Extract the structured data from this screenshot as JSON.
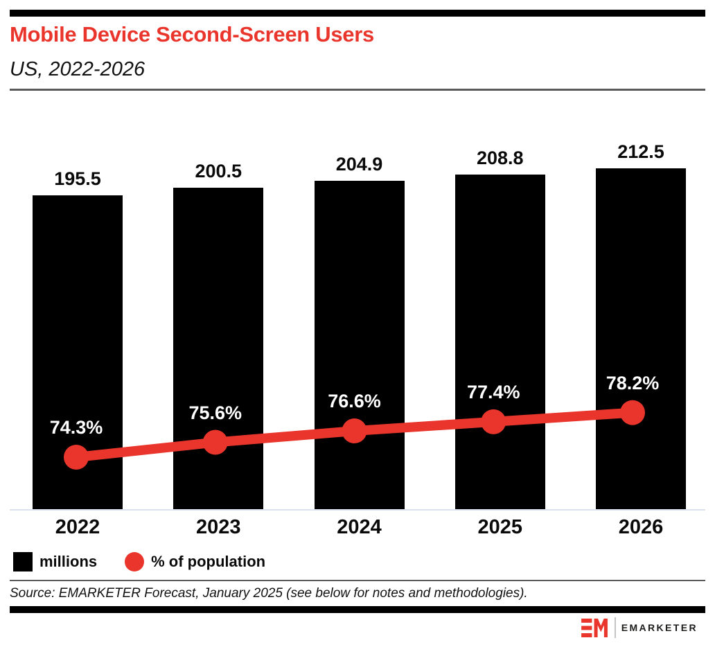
{
  "header": {
    "title": "Mobile Device Second-Screen Users",
    "subtitle": "US, 2022-2026"
  },
  "chart_data": {
    "type": "combo-bar-line",
    "categories": [
      "2022",
      "2023",
      "2024",
      "2025",
      "2026"
    ],
    "series": [
      {
        "name": "millions",
        "type": "bar",
        "color": "#000000",
        "values": [
          195.5,
          200.5,
          204.9,
          208.8,
          212.5
        ],
        "labels": [
          "195.5",
          "200.5",
          "204.9",
          "208.8",
          "212.5"
        ]
      },
      {
        "name": "% of population",
        "type": "line",
        "color": "#e9352b",
        "values": [
          74.3,
          75.6,
          76.6,
          77.4,
          78.2
        ],
        "labels": [
          "74.3%",
          "75.6%",
          "76.6%",
          "77.4%",
          "78.2%"
        ]
      }
    ],
    "title": "Mobile Device Second-Screen Users",
    "subtitle": "US, 2022-2026",
    "xlabel": "",
    "ylabel": "",
    "bar_axis_min": 0,
    "grid": false,
    "value_labels": "above bars and above line points",
    "legend_position": "bottom-left"
  },
  "colors": {
    "accent_red": "#e9352b",
    "bar_black": "#000000",
    "axis_line": "#d9e3ee",
    "rule_gray": "#5a5a5a"
  },
  "footer": {
    "source": "Source: EMARKETER Forecast, January 2025 (see below for notes and methodologies)."
  },
  "logo": {
    "monogram": "EM",
    "wordmark": "EMARKETER"
  }
}
